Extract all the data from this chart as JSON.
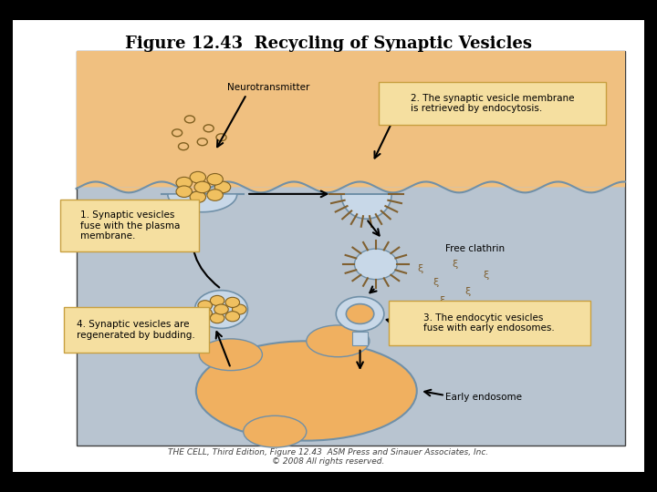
{
  "title": "Figure 12.43  Recycling of Synaptic Vesicles",
  "title_fontsize": 13,
  "bg_outer": "#000000",
  "bg_figure": "#ffffff",
  "bg_panel": "#b8c4d0",
  "bg_top_band": "#f0c080",
  "label1": "1. Synaptic vesicles\nfuse with the plasma\nmembrane.",
  "label2": "2. The synaptic vesicle membrane\nis retrieved by endocytosis.",
  "label3": "3. The endocytic vesicles\nfuse with early endosomes.",
  "label4": "4. Synaptic vesicles are\nregenerated by budding.",
  "label_neurotransmitter": "Neurotransmitter",
  "label_free_clathrin": "Free clathrin",
  "label_early_endosome": "Early endosome",
  "label_box_bg": "#f5dfa0",
  "label_box_edge": "#c8a040",
  "vesicle_fill": "#f0c060",
  "vesicle_edge": "#806020",
  "endosome_fill": "#f0b060",
  "endosome_edge": "#805020",
  "clathrin_color": "#806030",
  "membrane_fill": "#c8d8e8",
  "membrane_edge": "#7090a8",
  "footer_text": "THE CELL, Third Edition, Figure 12.43  ASM Press and Sinauer Associates, Inc.\n© 2008 All rights reserved.",
  "footer_fontsize": 6.5
}
